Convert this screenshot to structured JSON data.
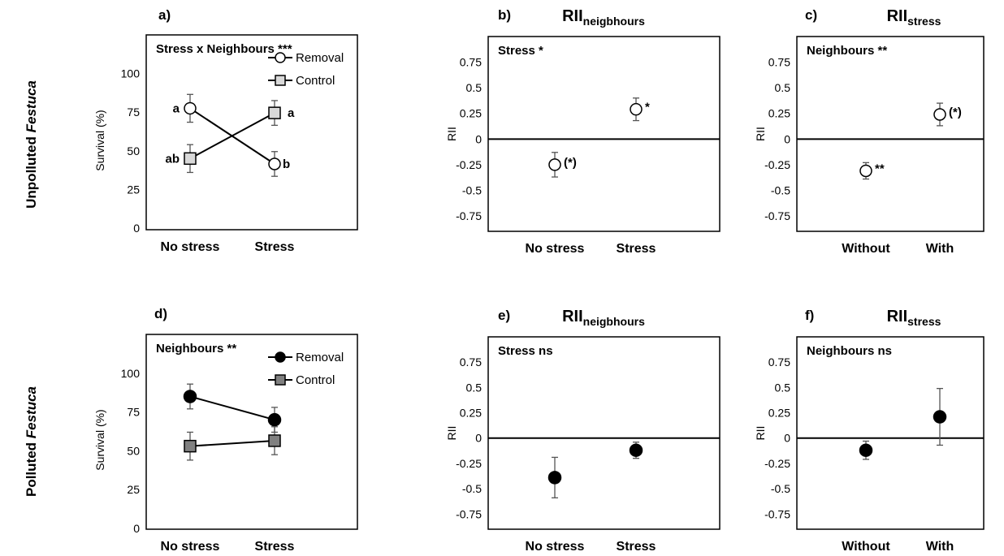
{
  "row_labels": [
    {
      "pre": "Unpolluted ",
      "ital": "Festuca"
    },
    {
      "pre": "Polluted ",
      "ital": "Festuca"
    }
  ],
  "chart_data": [
    {
      "panel": "a)",
      "type": "line",
      "title": "",
      "title_sub": "",
      "ylabel": "Survival (%)",
      "ylim": [
        0,
        125
      ],
      "yticks": [
        0,
        25,
        50,
        75,
        100
      ],
      "ytick_labels": [
        "0",
        "25",
        "50",
        "75",
        "100"
      ],
      "categories": [
        "No stress",
        "Stress"
      ],
      "annotation": "Stress x Neighbours ***",
      "legend": {
        "position": "top-right",
        "entries": [
          {
            "label": "Removal",
            "marker": "circle",
            "fill": "#ffffff"
          },
          {
            "label": "Control",
            "marker": "square",
            "fill": "#d9d9d9"
          }
        ]
      },
      "series": [
        {
          "name": "Removal",
          "marker": "circle",
          "fill": "#ffffff",
          "values": [
            77.5,
            41.5
          ],
          "errors": [
            9,
            8
          ],
          "labels": [
            "a",
            "b"
          ]
        },
        {
          "name": "Control",
          "marker": "square",
          "fill": "#d9d9d9",
          "values": [
            45,
            74.5
          ],
          "errors": [
            9,
            8
          ],
          "labels": [
            "ab",
            "a"
          ]
        }
      ]
    },
    {
      "panel": "b)",
      "type": "scatter",
      "title": "RII",
      "title_sub": "neigbhours",
      "ylabel": "RII",
      "ylim": [
        -0.9,
        1.0
      ],
      "zero_line": true,
      "yticks": [
        -0.75,
        -0.5,
        -0.25,
        0,
        0.25,
        0.5,
        0.75
      ],
      "ytick_labels": [
        "-0.75",
        "-0.5",
        "-0.25",
        "0",
        "0.25",
        "0.5",
        "0.75"
      ],
      "categories": [
        "No stress",
        "Stress"
      ],
      "annotation": "Stress *",
      "series": [
        {
          "name": "",
          "marker": "circle",
          "fill": "#ffffff",
          "values": [
            -0.25,
            0.29
          ],
          "errors": [
            0.12,
            0.11
          ],
          "labels": [
            "(*)",
            "*"
          ]
        }
      ]
    },
    {
      "panel": "c)",
      "type": "scatter",
      "title": "RII",
      "title_sub": "stress",
      "ylabel": "RII",
      "ylim": [
        -0.9,
        1.0
      ],
      "zero_line": true,
      "yticks": [
        -0.75,
        -0.5,
        -0.25,
        0,
        0.25,
        0.5,
        0.75
      ],
      "ytick_labels": [
        "-0.75",
        "-0.5",
        "-0.25",
        "0",
        "0.25",
        "0.5",
        "0.75"
      ],
      "categories": [
        "Without",
        "With"
      ],
      "annotation": "Neighbours **",
      "series": [
        {
          "name": "",
          "marker": "circle",
          "fill": "#ffffff",
          "values": [
            -0.31,
            0.24
          ],
          "errors": [
            0.08,
            0.11
          ],
          "labels": [
            "**",
            "(*)"
          ]
        }
      ]
    },
    {
      "panel": "d)",
      "type": "line",
      "title": "",
      "title_sub": "",
      "ylabel": "Survival (%)",
      "ylim": [
        0,
        125
      ],
      "yticks": [
        0,
        25,
        50,
        75,
        100
      ],
      "ytick_labels": [
        "0",
        "25",
        "50",
        "75",
        "100"
      ],
      "categories": [
        "No stress",
        "Stress"
      ],
      "annotation": "Neighbours **",
      "legend": {
        "position": "top-right",
        "entries": [
          {
            "label": "Removal",
            "marker": "circle",
            "fill": "#000000"
          },
          {
            "label": "Control",
            "marker": "square",
            "fill": "#808080"
          }
        ]
      },
      "series": [
        {
          "name": "Removal",
          "marker": "circle",
          "fill": "#000000",
          "values": [
            85,
            70
          ],
          "errors": [
            8,
            8
          ],
          "labels": [
            "",
            ""
          ]
        },
        {
          "name": "Control",
          "marker": "square",
          "fill": "#808080",
          "values": [
            53,
            56.5
          ],
          "errors": [
            9,
            9
          ],
          "labels": [
            "",
            ""
          ]
        }
      ]
    },
    {
      "panel": "e)",
      "type": "scatter",
      "title": "RII",
      "title_sub": "neigbhours",
      "ylabel": "RII",
      "ylim": [
        -0.9,
        1.0
      ],
      "zero_line": true,
      "yticks": [
        -0.75,
        -0.5,
        -0.25,
        0,
        0.25,
        0.5,
        0.75
      ],
      "ytick_labels": [
        "-0.75",
        "-0.5",
        "-0.25",
        "0",
        "0.25",
        "0.5",
        "0.75"
      ],
      "categories": [
        "No stress",
        "Stress"
      ],
      "annotation": "Stress ns",
      "series": [
        {
          "name": "",
          "marker": "circle",
          "fill": "#000000",
          "values": [
            -0.39,
            -0.12
          ],
          "errors": [
            0.2,
            0.08
          ],
          "labels": [
            "",
            ""
          ]
        }
      ]
    },
    {
      "panel": "f)",
      "type": "scatter",
      "title": "RII",
      "title_sub": "stress",
      "ylabel": "RII",
      "ylim": [
        -0.9,
        1.0
      ],
      "zero_line": true,
      "yticks": [
        -0.75,
        -0.5,
        -0.25,
        0,
        0.25,
        0.5,
        0.75
      ],
      "ytick_labels": [
        "-0.75",
        "-0.5",
        "-0.25",
        "0",
        "0.25",
        "0.5",
        "0.75"
      ],
      "categories": [
        "Without",
        "With"
      ],
      "annotation": "Neighbours ns",
      "series": [
        {
          "name": "",
          "marker": "circle",
          "fill": "#000000",
          "values": [
            -0.12,
            0.21
          ],
          "errors": [
            0.09,
            0.28
          ],
          "labels": [
            "",
            ""
          ]
        }
      ]
    }
  ]
}
